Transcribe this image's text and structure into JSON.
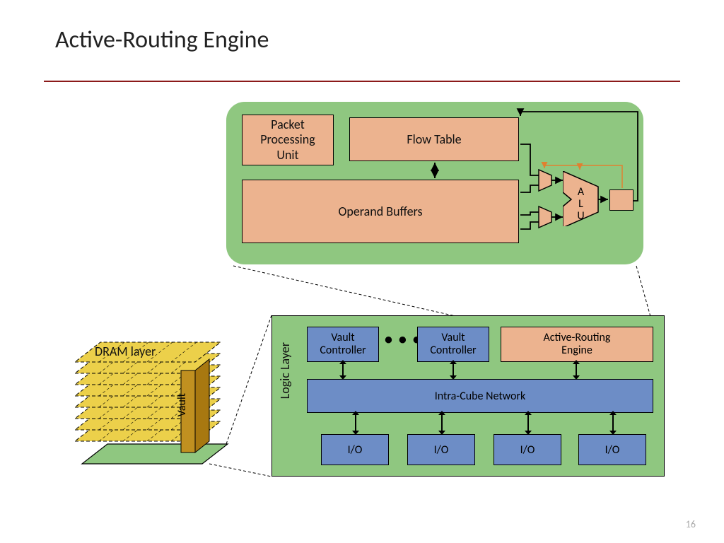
{
  "title": "Active-Routing Engine",
  "page_number": "16",
  "colors": {
    "background": "#ffffff",
    "panel_green": "#8fc780",
    "box_orange": "#ecb38f",
    "box_blue": "#6d8dc6",
    "dram_yellow": "#ecd04a",
    "stroke": "#000000",
    "hr": "#8b1a1a",
    "orange_arrow": "#e08030"
  },
  "engine": {
    "type": "block-diagram",
    "ppu": "Packet\nProcessing\nUnit",
    "flow": "Flow Table",
    "operand": "Operand Buffers",
    "alu": "ALU"
  },
  "logic": {
    "type": "block-diagram",
    "layer_label": "Logic Layer",
    "vault_controller": "Vault\nController",
    "active_routing_engine": "Active-Routing\nEngine",
    "intra_cube": "Intra-Cube Network",
    "io": "I/O",
    "io_count": 4,
    "ellipsis": "• • •"
  },
  "dram": {
    "label": "DRAM layer",
    "vault_label": "Vault",
    "layer_count": 8
  },
  "typography": {
    "title_fontsize": 34,
    "body_fontsize": 18,
    "small_fontsize": 16
  }
}
